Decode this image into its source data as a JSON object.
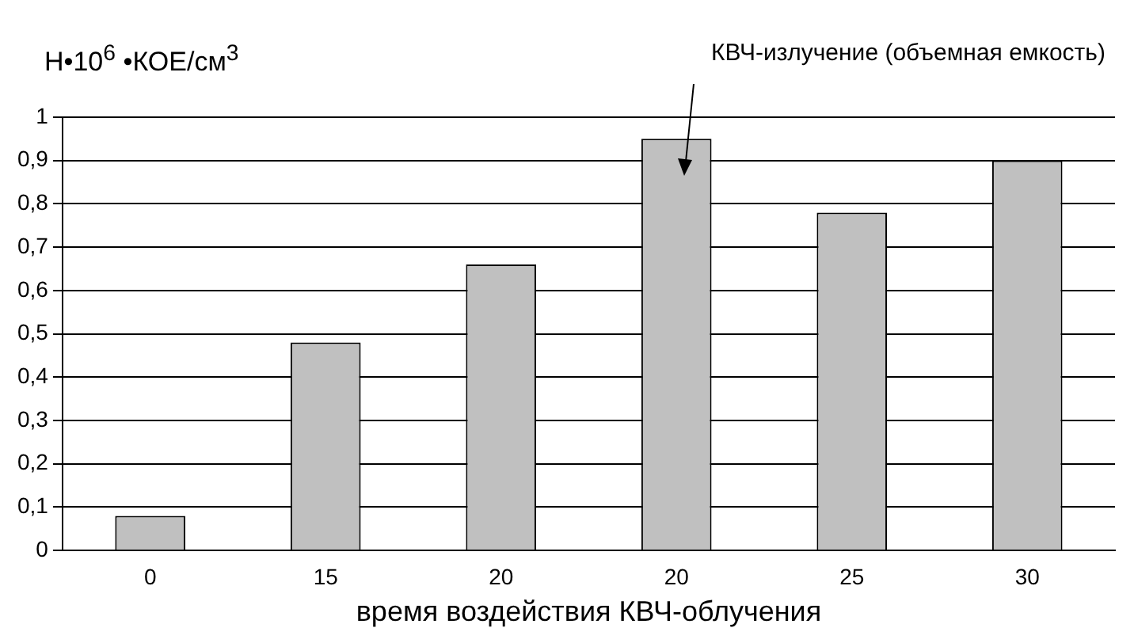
{
  "chart_data": {
    "type": "bar",
    "ylabel": "Н•10$^{6}$ •КОЕ/см$^{3}$",
    "xlabel": "время воздействия КВЧ-облучения",
    "categories": [
      "0",
      "15",
      "20",
      "20",
      "25",
      "30"
    ],
    "values": [
      0.08,
      0.48,
      0.66,
      0.95,
      0.78,
      0.9
    ],
    "color": "#c0c0c0",
    "ylim": [
      0,
      1
    ],
    "yticks": [
      {
        "value": 0,
        "label": "0"
      },
      {
        "value": 0.1,
        "label": "0,1"
      },
      {
        "value": 0.2,
        "label": "0,2"
      },
      {
        "value": 0.3,
        "label": "0,3"
      },
      {
        "value": 0.4,
        "label": "0,4"
      },
      {
        "value": 0.5,
        "label": "0,5"
      },
      {
        "value": 0.6,
        "label": "0,6"
      },
      {
        "value": 0.7,
        "label": "0,7"
      },
      {
        "value": 0.8,
        "label": "0,8"
      },
      {
        "value": 0.9,
        "label": "0,9"
      },
      {
        "value": 1,
        "label": "1"
      }
    ],
    "grid": "y",
    "annotations": [
      "КВЧ-излучение (объемная емкость)"
    ]
  }
}
